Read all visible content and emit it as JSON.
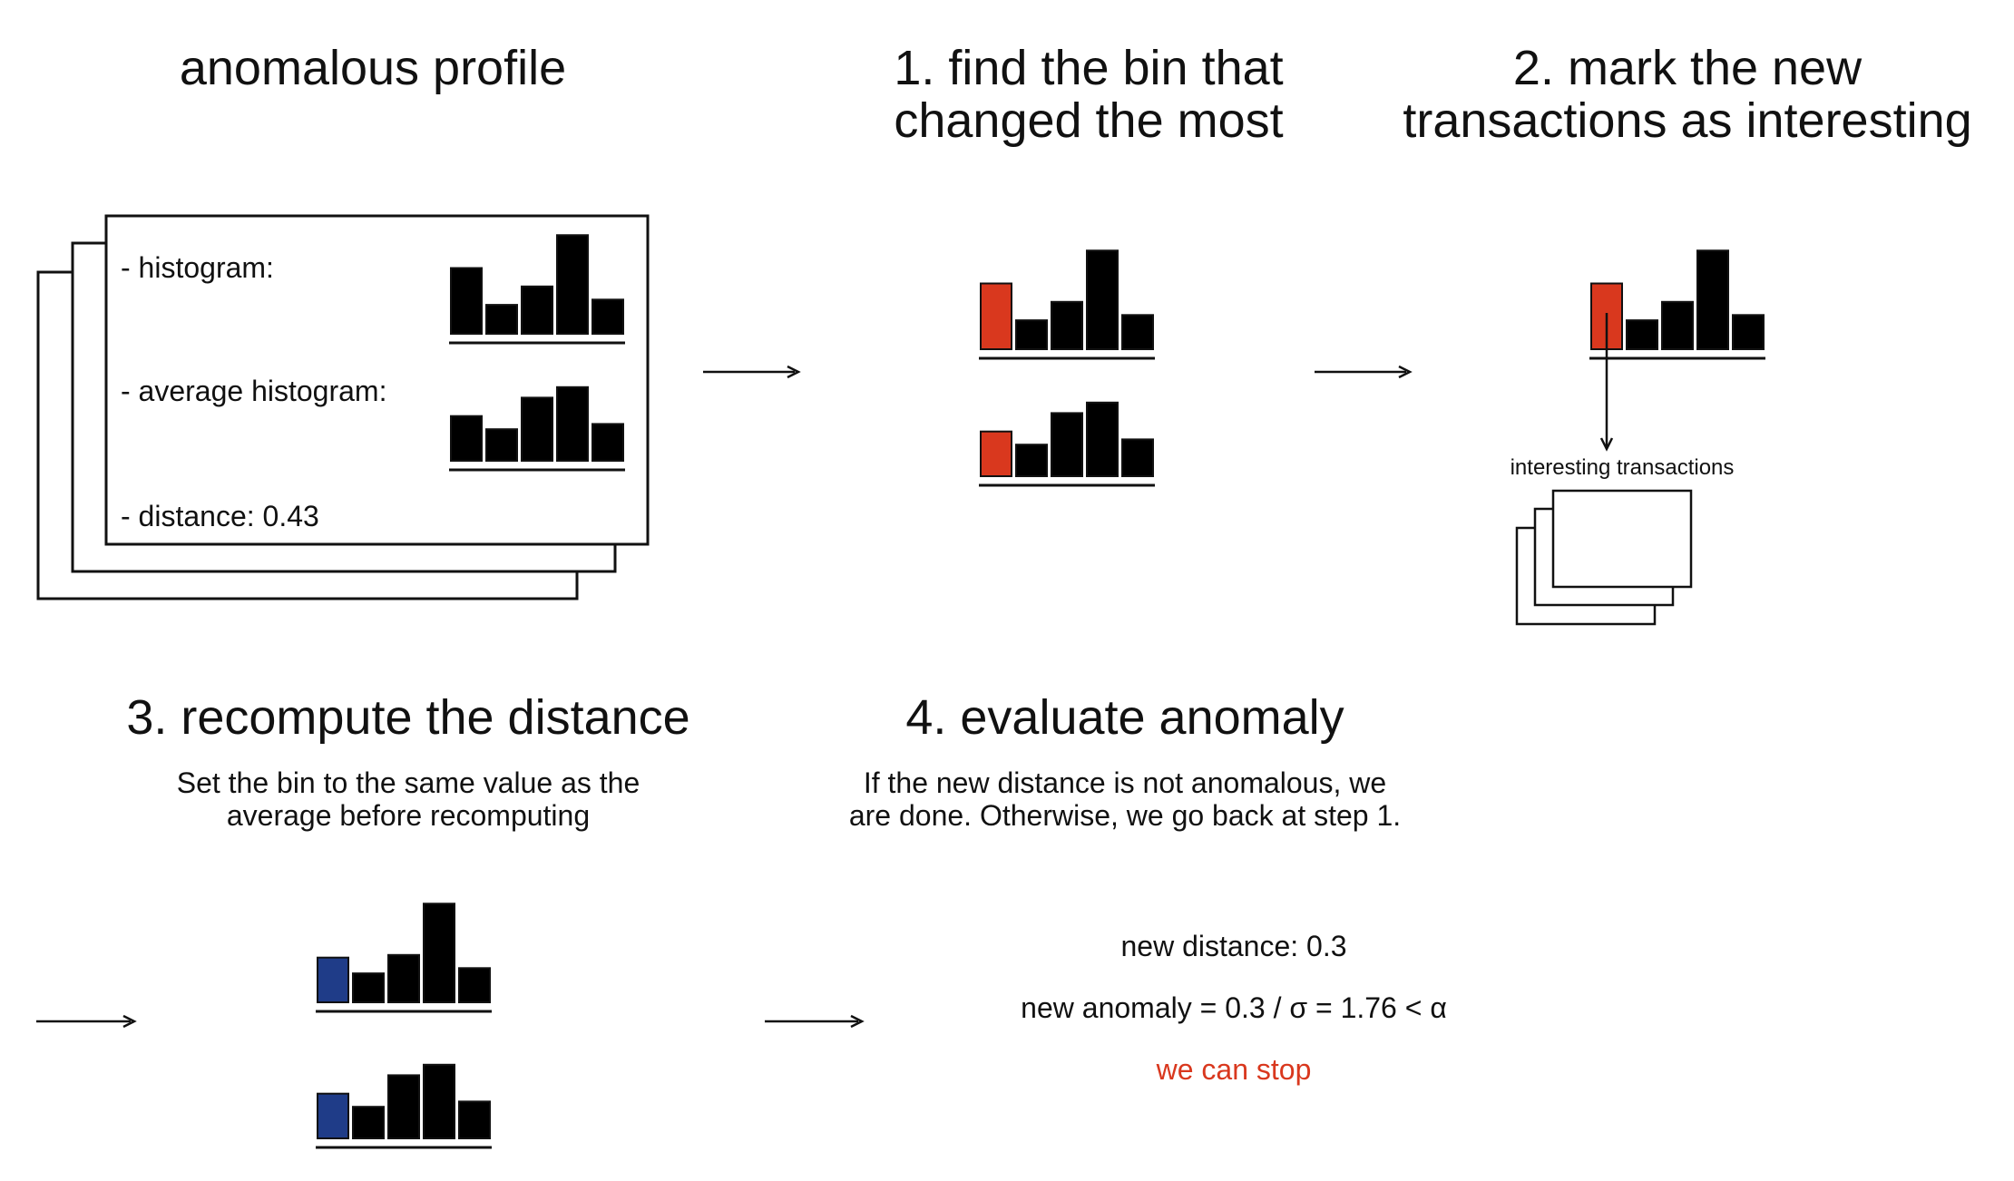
{
  "colors": {
    "highlight": "#d9381e",
    "corrected": "#1f3c88",
    "bar": "#000000",
    "arrow": "#111111",
    "stop_text": "#d9381e"
  },
  "profile": {
    "title": "anomalous profile",
    "histogram_label": "- histogram:",
    "average_label": "- average histogram:",
    "distance_label": "- distance: 0.43",
    "histogram_values": [
      5,
      2.2,
      3.6,
      7.5,
      2.6
    ],
    "average_values": [
      3.4,
      2.4,
      4.8,
      5.6,
      2.8
    ]
  },
  "step1": {
    "title_line1": "1. find the bin that",
    "title_line2": "changed the most",
    "histogram_values": [
      5,
      2.2,
      3.6,
      7.5,
      2.6
    ],
    "average_values": [
      3.4,
      2.4,
      4.8,
      5.6,
      2.8
    ],
    "highlighted_bin": 0
  },
  "step2": {
    "title_line1": "2. mark the new",
    "title_line2": "transactions as interesting",
    "histogram_values": [
      5,
      2.2,
      3.6,
      7.5,
      2.6
    ],
    "highlighted_bin": 0,
    "interesting_label": "interesting transactions"
  },
  "step3": {
    "title": "3. recompute the distance",
    "desc_line1": "Set the bin to the same value as the",
    "desc_line2": "average before recomputing",
    "histogram_values": [
      3.4,
      2.2,
      3.6,
      7.5,
      2.6
    ],
    "average_values": [
      3.4,
      2.4,
      4.8,
      5.6,
      2.8
    ],
    "corrected_bin": 0
  },
  "step4": {
    "title": "4. evaluate anomaly",
    "desc_line1": "If the new distance is not anomalous, we",
    "desc_line2": "are done. Otherwise, we go back at step 1.",
    "new_distance": "new distance: 0.3",
    "new_anomaly": "new anomaly = 0.3 / σ = 1.76 < α",
    "conclusion": "we can stop"
  }
}
